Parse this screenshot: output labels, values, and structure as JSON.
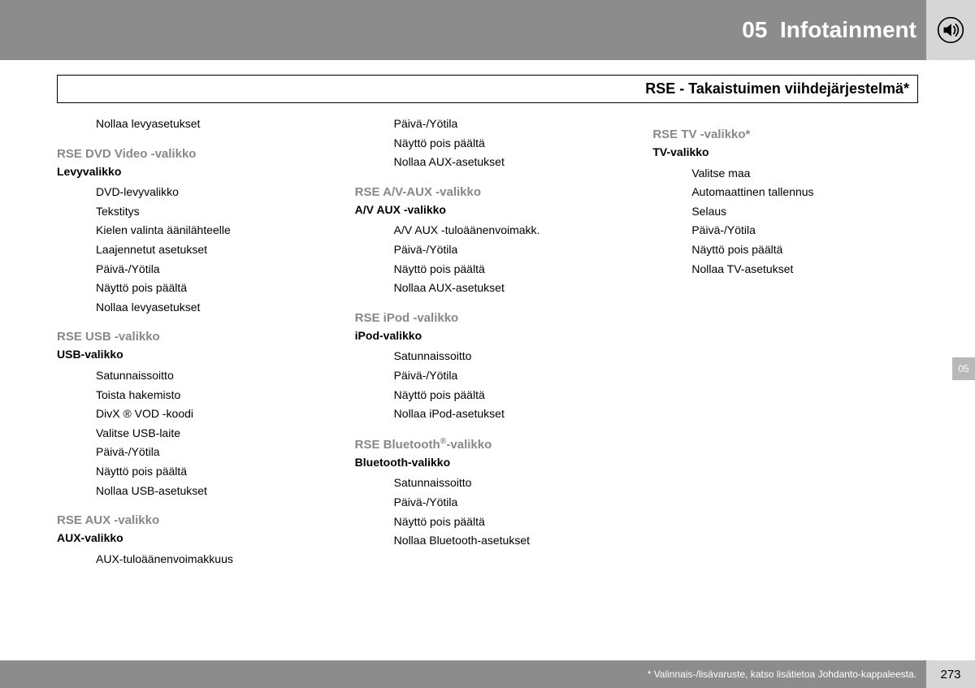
{
  "header": {
    "chapter_num": "05",
    "chapter_title": "Infotainment",
    "icon_name": "speaker-icon"
  },
  "subtitle": "RSE - Takaistuimen viihdejärjestelmä*",
  "side_tab": "05",
  "page_number": "273",
  "footnote": "* Valinnais-/lisävaruste, katso lisätietoa Johdanto-kappaleesta.",
  "columns": [
    {
      "orphans": [
        "Nollaa levyasetukset"
      ],
      "sections": [
        {
          "title": "RSE DVD Video -valikko",
          "sub": "Levyvalikko",
          "items": [
            "DVD-levyvalikko",
            "Tekstitys",
            "Kielen valinta äänilähteelle",
            "Laajennetut asetukset",
            "Päivä-/Yötila",
            "Näyttö pois päältä",
            "Nollaa levyasetukset"
          ]
        },
        {
          "title": "RSE USB -valikko",
          "sub": "USB-valikko",
          "items": [
            "Satunnaissoitto",
            "Toista hakemisto",
            "DivX ® VOD -koodi",
            "Valitse USB-laite",
            "Päivä-/Yötila",
            "Näyttö pois päältä",
            "Nollaa USB-asetukset"
          ]
        },
        {
          "title": "RSE AUX -valikko",
          "sub": "AUX-valikko",
          "items": [
            "AUX-tuloäänenvoimakkuus"
          ]
        }
      ]
    },
    {
      "orphans": [
        "Päivä-/Yötila",
        "Näyttö pois päältä",
        "Nollaa AUX-asetukset"
      ],
      "sections": [
        {
          "title": "RSE A/V-AUX -valikko",
          "sub": "A/V AUX -valikko",
          "items": [
            "A/V AUX -tuloäänenvoimakk.",
            "Päivä-/Yötila",
            "Näyttö pois päältä",
            "Nollaa AUX-asetukset"
          ]
        },
        {
          "title": "RSE iPod -valikko",
          "sub": "iPod-valikko",
          "items": [
            "Satunnaissoitto",
            "Päivä-/Yötila",
            "Näyttö pois päältä",
            "Nollaa iPod-asetukset"
          ]
        },
        {
          "title": "RSE Bluetooth®-valikko",
          "sub": "Bluetooth-valikko",
          "title_has_sup": true,
          "items": [
            "Satunnaissoitto",
            "Päivä-/Yötila",
            "Näyttö pois päältä",
            "Nollaa Bluetooth-asetukset"
          ]
        }
      ]
    },
    {
      "orphans": [],
      "sections": [
        {
          "title": "RSE TV -valikko*",
          "sub": "TV-valikko",
          "items": [
            "Valitse maa",
            "Automaattinen tallennus",
            "Selaus",
            "Päivä-/Yötila",
            "Näyttö pois päältä",
            "Nollaa TV-asetukset"
          ]
        }
      ]
    }
  ]
}
